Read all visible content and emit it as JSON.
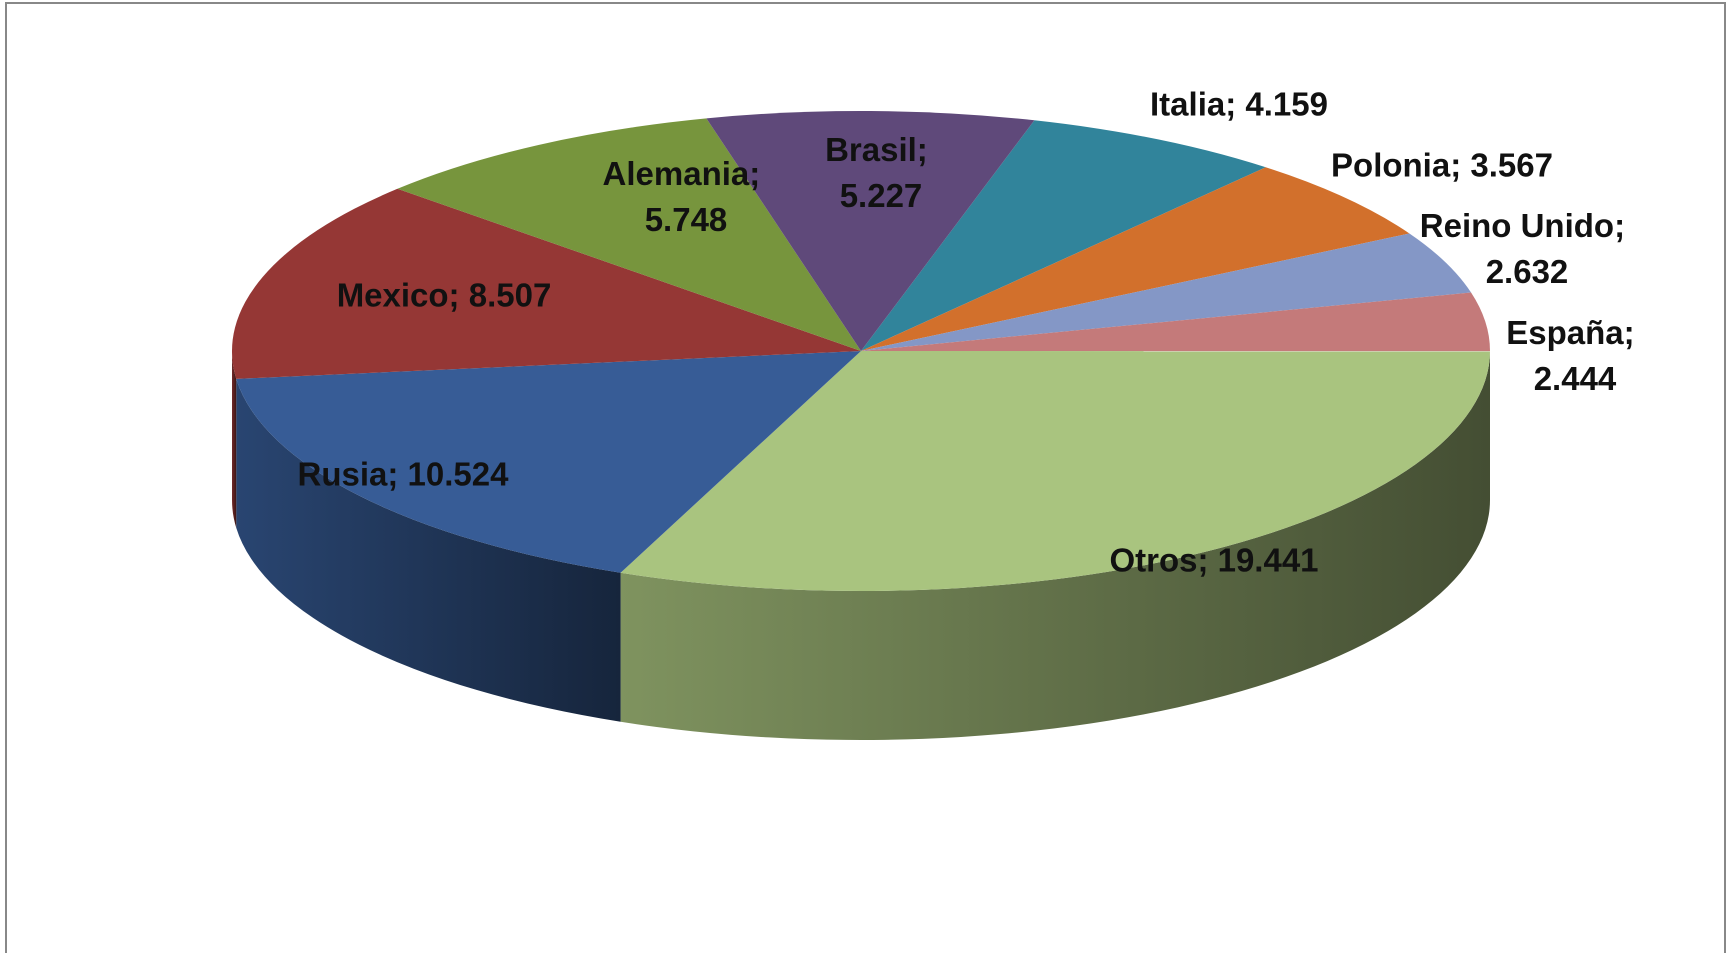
{
  "chart_data": {
    "type": "pie3d",
    "categories": [
      "Italia",
      "Polonia",
      "Reino Unido",
      "España",
      "Otros",
      "Rusia",
      "Mexico",
      "Alemania",
      "Brasil"
    ],
    "values": [
      4.159,
      3.567,
      2.632,
      2.444,
      19.441,
      10.524,
      8.507,
      5.748,
      5.227
    ],
    "value_labels": [
      "Italia; 4.159",
      "Polonia; 3.567",
      "Reino Unido; 2.632",
      "España; 2.444",
      "Otros; 19.441",
      "Rusia; 10.524",
      "Mexico; 8.507",
      "Alemania; 5.748",
      "Brasil; 5.227"
    ],
    "colors": [
      "#31849b",
      "#d2702c",
      "#8497c6",
      "#c47a7a",
      "#a9c47f",
      "#375c96",
      "#953735",
      "#77953d",
      "#5f497a"
    ]
  }
}
